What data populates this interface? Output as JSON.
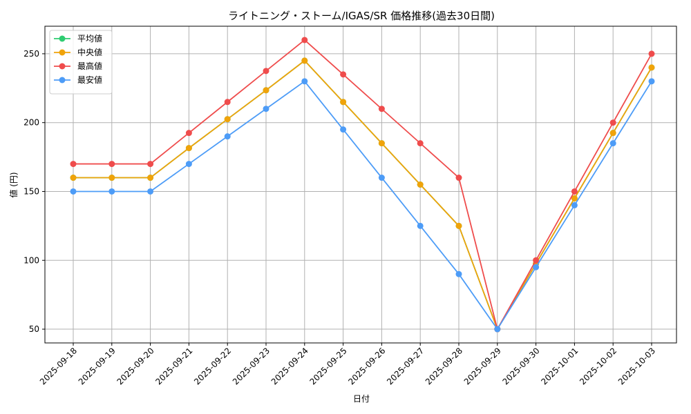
{
  "chart_data": {
    "type": "line",
    "title": "ライトニング・ストーム/IGAS/SR 価格推移(過去30日間)",
    "xlabel": "日付",
    "ylabel": "値 (円)",
    "ylim": [
      40,
      270
    ],
    "yticks": [
      50,
      100,
      150,
      200,
      250
    ],
    "grid": true,
    "legend_position": "top-left",
    "categories": [
      "2025-09-18",
      "2025-09-19",
      "2025-09-20",
      "2025-09-21",
      "2025-09-22",
      "2025-09-23",
      "2025-09-24",
      "2025-09-25",
      "2025-09-26",
      "2025-09-27",
      "2025-09-28",
      "2025-09-29",
      "2025-09-30",
      "2025-10-01",
      "2025-10-02",
      "2025-10-03"
    ],
    "series": [
      {
        "name": "平均値",
        "color": "#2ecc71",
        "values": [
          160,
          160,
          160,
          181.5,
          202.5,
          223.5,
          245,
          215,
          185,
          155,
          125,
          50,
          97.5,
          145,
          192.5,
          240
        ]
      },
      {
        "name": "中央値",
        "color": "#f0a30a",
        "values": [
          160,
          160,
          160,
          181.5,
          202.5,
          223.5,
          245,
          215,
          185,
          155,
          125,
          50,
          97.5,
          145,
          192.5,
          240
        ]
      },
      {
        "name": "最高値",
        "color": "#ef4c4c",
        "values": [
          170,
          170,
          170,
          192.5,
          215,
          237.5,
          260,
          235,
          210,
          185,
          160,
          50,
          100,
          150,
          200,
          250
        ]
      },
      {
        "name": "最安値",
        "color": "#4d9cf7",
        "values": [
          150,
          150,
          150,
          170,
          190,
          210,
          230,
          195,
          160,
          125,
          90,
          50,
          95,
          140,
          185,
          230
        ]
      }
    ]
  }
}
